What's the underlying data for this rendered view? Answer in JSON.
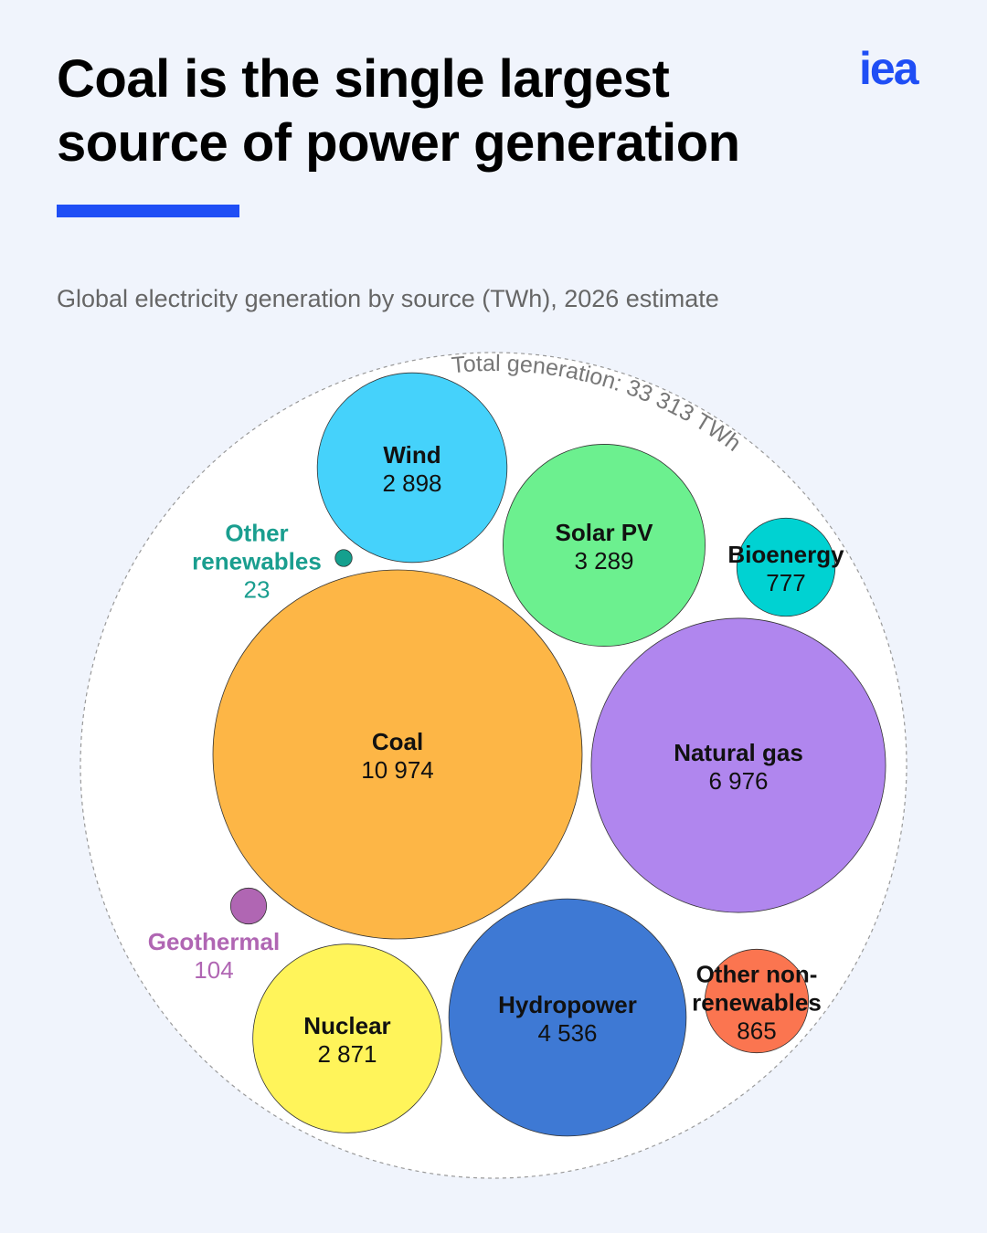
{
  "chart_data": {
    "type": "packed_bubble",
    "title": "Coal is the single largest source of power generation",
    "subtitle": "Global electricity generation by source (TWh), 2026 estimate",
    "logo": "iea",
    "annotation": "Total generation: 33 313 TWh",
    "categories": [
      "Wind",
      "Solar PV",
      "Bioenergy",
      "Other renewables",
      "Coal",
      "Natural gas",
      "Geothermal",
      "Nuclear",
      "Hydropower",
      "Other non-renewables"
    ],
    "values": [
      2898,
      3289,
      777,
      23,
      10974,
      6976,
      104,
      2871,
      4536,
      865
    ],
    "value_labels": [
      "2 898",
      "3 289",
      "777",
      "23",
      "10 974",
      "6 976",
      "104",
      "2 871",
      "4 536",
      "865"
    ],
    "colors": [
      "#45d2fb",
      "#6cf08f",
      "#00d2d2",
      "#14a08e",
      "#fdb646",
      "#b086ee",
      "#b066b3",
      "#fff45a",
      "#3e79d4",
      "#fb7550"
    ]
  }
}
